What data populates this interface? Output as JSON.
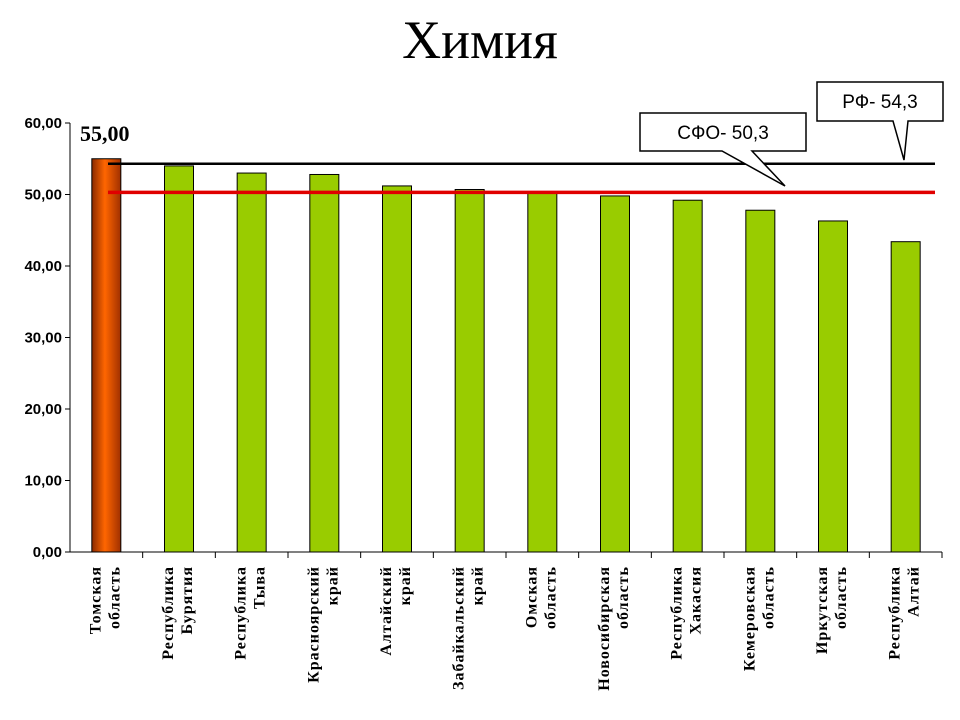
{
  "chart_data": {
    "type": "bar",
    "title": "Химия",
    "categories": [
      [
        "Томская",
        "область"
      ],
      [
        "Республика",
        "Бурятия"
      ],
      [
        "Республика",
        "Тыва"
      ],
      [
        "Красноярский",
        "край"
      ],
      [
        "Алтайский",
        "край"
      ],
      [
        "Забайкальский",
        "край"
      ],
      [
        "Омская",
        "область"
      ],
      [
        "Новосибирская",
        "область"
      ],
      [
        "Республика",
        "Хакасия"
      ],
      [
        "Кемеровская",
        "область"
      ],
      [
        "Иркутская",
        "область"
      ],
      [
        "Республика",
        "Алтай"
      ]
    ],
    "values": [
      55.0,
      54.0,
      53.0,
      52.8,
      51.2,
      50.7,
      50.2,
      49.8,
      49.2,
      47.8,
      46.3,
      43.4
    ],
    "highlight_index": 0,
    "highlight_label": "55,00",
    "ylim": [
      0,
      60
    ],
    "yticks": [
      "0,00",
      "10,00",
      "20,00",
      "30,00",
      "40,00",
      "50,00",
      "60,00"
    ],
    "reference_lines": [
      {
        "label": "РФ- 54,3",
        "value": 54.3,
        "color": "#000000"
      },
      {
        "label": "СФО- 50,3",
        "value": 50.3,
        "color": "#e00000"
      }
    ],
    "colors": {
      "bar": "#99cc00",
      "highlight": "#ff6600",
      "highlight_dark": "#993300"
    }
  }
}
